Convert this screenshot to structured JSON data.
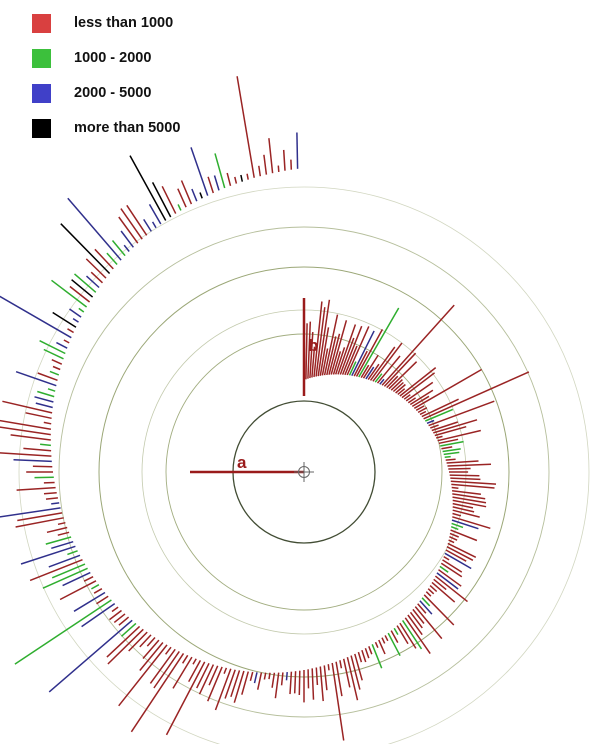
{
  "chart_data": {
    "type": "radial-bar",
    "legend": [
      {
        "label": "less than 1000",
        "color": "#d94040"
      },
      {
        "label": "1000 - 2000",
        "color": "#3cc03c"
      },
      {
        "label": "2000 - 5000",
        "color": "#4040c8"
      },
      {
        "label": "more than 5000",
        "color": "#000000"
      }
    ],
    "bar_colors": {
      "red": "#9a2424",
      "green": "#2fae2f",
      "blue": "#30308c",
      "black": "#000000"
    },
    "guide_color": "#7a8a4a",
    "markers": [
      {
        "label": "a",
        "color": "#9a1b1b"
      },
      {
        "label": "b",
        "color": "#9a1b1b"
      }
    ]
  }
}
